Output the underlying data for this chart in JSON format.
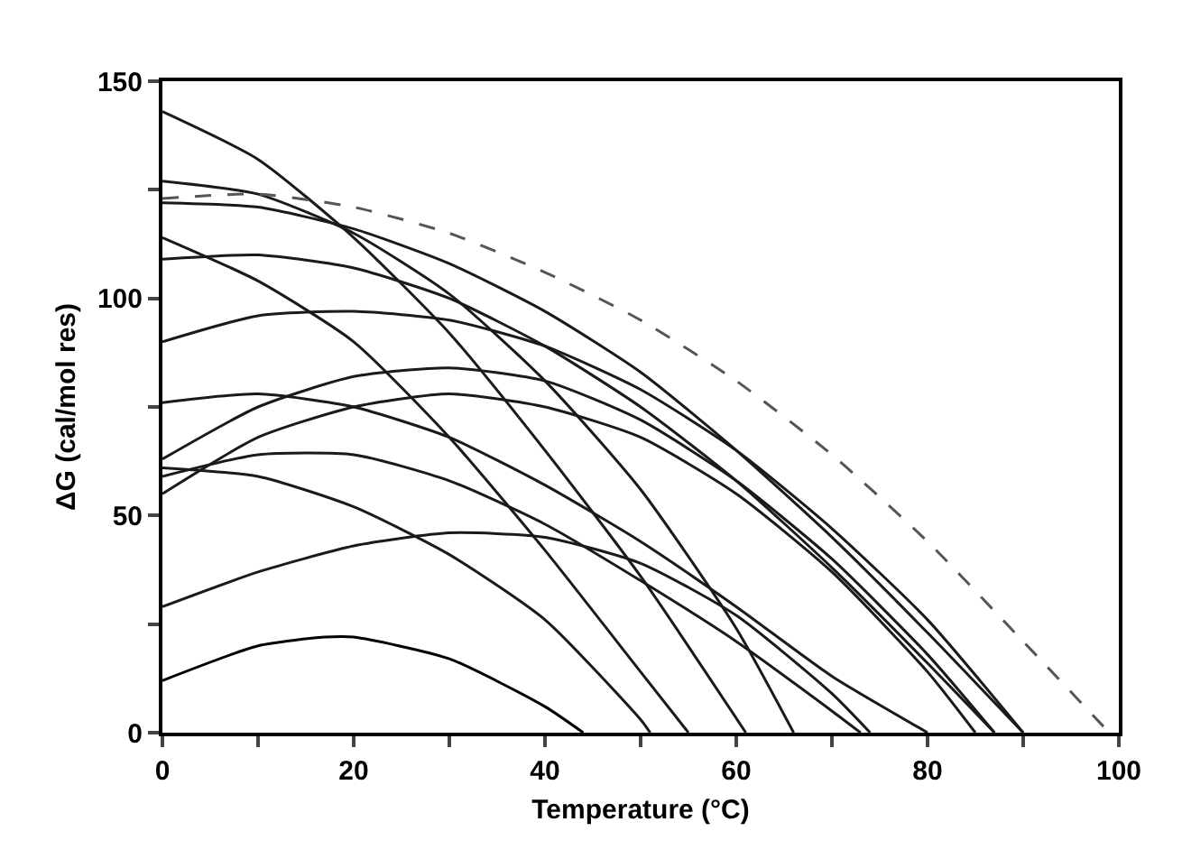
{
  "chart_data": {
    "type": "line",
    "xlabel": "Temperature (°C)",
    "ylabel": "ΔG (cal/mol res)",
    "xlim": [
      0,
      100
    ],
    "ylim": [
      0,
      150
    ],
    "xticks": [
      0,
      {
        "value": 10,
        "label": null
      },
      20,
      {
        "value": 30,
        "label": null
      },
      40,
      {
        "value": 50,
        "label": null
      },
      60,
      {
        "value": 70,
        "label": null
      },
      80,
      {
        "value": 90,
        "label": null
      },
      100
    ],
    "yticks": [
      0,
      {
        "value": 25,
        "label": null
      },
      50,
      {
        "value": 75,
        "label": null
      },
      100,
      {
        "value": 125,
        "label": null
      },
      150
    ],
    "grid": false,
    "marker": "none",
    "line_style": "solid",
    "series": [
      {
        "color": "#1a1a1a",
        "x": [
          0,
          10,
          20,
          30,
          40,
          50,
          61
        ],
        "values": [
          143,
          132,
          114,
          92,
          65,
          36,
          0
        ]
      },
      {
        "color": "#1a1a1a",
        "x": [
          0,
          10,
          20,
          30,
          40,
          50,
          60,
          66
        ],
        "values": [
          127,
          124,
          115,
          101,
          81,
          56,
          24,
          0
        ]
      },
      {
        "color": "#1a1a1a",
        "x": [
          0,
          10,
          20,
          30,
          40,
          50,
          60,
          70,
          80,
          90
        ],
        "values": [
          122,
          121,
          116,
          108,
          97,
          83,
          65,
          45,
          23,
          0
        ]
      },
      {
        "color": "#1a1a1a",
        "x": [
          0,
          10,
          20,
          30,
          40,
          50,
          55
        ],
        "values": [
          114,
          104,
          90,
          68,
          42,
          14,
          0
        ]
      },
      {
        "color": "#1a1a1a",
        "x": [
          0,
          10,
          20,
          30,
          40,
          50,
          60,
          70,
          80,
          87
        ],
        "values": [
          109,
          110,
          107,
          100,
          89,
          75,
          58,
          38,
          16,
          0
        ]
      },
      {
        "color": "#1a1a1a",
        "x": [
          0,
          10,
          20,
          30,
          40,
          50,
          60,
          70,
          80,
          90
        ],
        "values": [
          90,
          96,
          97,
          95,
          89,
          79,
          65,
          47,
          26,
          0
        ]
      },
      {
        "color": "#1a1a1a",
        "x": [
          0,
          10,
          20,
          30,
          40,
          50,
          60,
          70,
          80
        ],
        "values": [
          76,
          78,
          75,
          68,
          57,
          44,
          29,
          13,
          0
        ]
      },
      {
        "color": "#1a1a1a",
        "x": [
          0,
          10,
          20,
          30,
          40,
          50,
          60,
          70,
          80,
          87
        ],
        "values": [
          63,
          75,
          82,
          84,
          81,
          72,
          58,
          40,
          18,
          0
        ]
      },
      {
        "color": "#1a1a1a",
        "x": [
          0,
          10,
          20,
          30,
          40,
          50,
          51
        ],
        "values": [
          61,
          59,
          52,
          41,
          26,
          3,
          0
        ]
      },
      {
        "color": "#1a1a1a",
        "x": [
          0,
          10,
          20,
          30,
          40,
          50,
          60,
          70,
          73
        ],
        "values": [
          59,
          64,
          64,
          58,
          48,
          35,
          21,
          5,
          0
        ]
      },
      {
        "color": "#1a1a1a",
        "x": [
          0,
          10,
          20,
          30,
          40,
          50,
          60,
          70,
          80,
          85
        ],
        "values": [
          55,
          68,
          75,
          78,
          75,
          68,
          55,
          37,
          14,
          0
        ]
      },
      {
        "color": "#1a1a1a",
        "x": [
          0,
          10,
          20,
          30,
          40,
          50,
          60,
          70,
          74
        ],
        "values": [
          29,
          37,
          43,
          46,
          45,
          39,
          27,
          9,
          0
        ]
      },
      {
        "color": "#000000",
        "x": [
          0,
          10,
          17,
          20,
          30,
          40,
          44
        ],
        "values": [
          12,
          20,
          22,
          22,
          17,
          6,
          0
        ]
      },
      {
        "color": "#555555",
        "line_style": "dashed",
        "x": [
          0,
          10,
          20,
          30,
          40,
          50,
          60,
          70,
          80,
          90,
          99
        ],
        "values": [
          123,
          124,
          121,
          115,
          106,
          95,
          81,
          64,
          44,
          21,
          0
        ]
      }
    ]
  }
}
